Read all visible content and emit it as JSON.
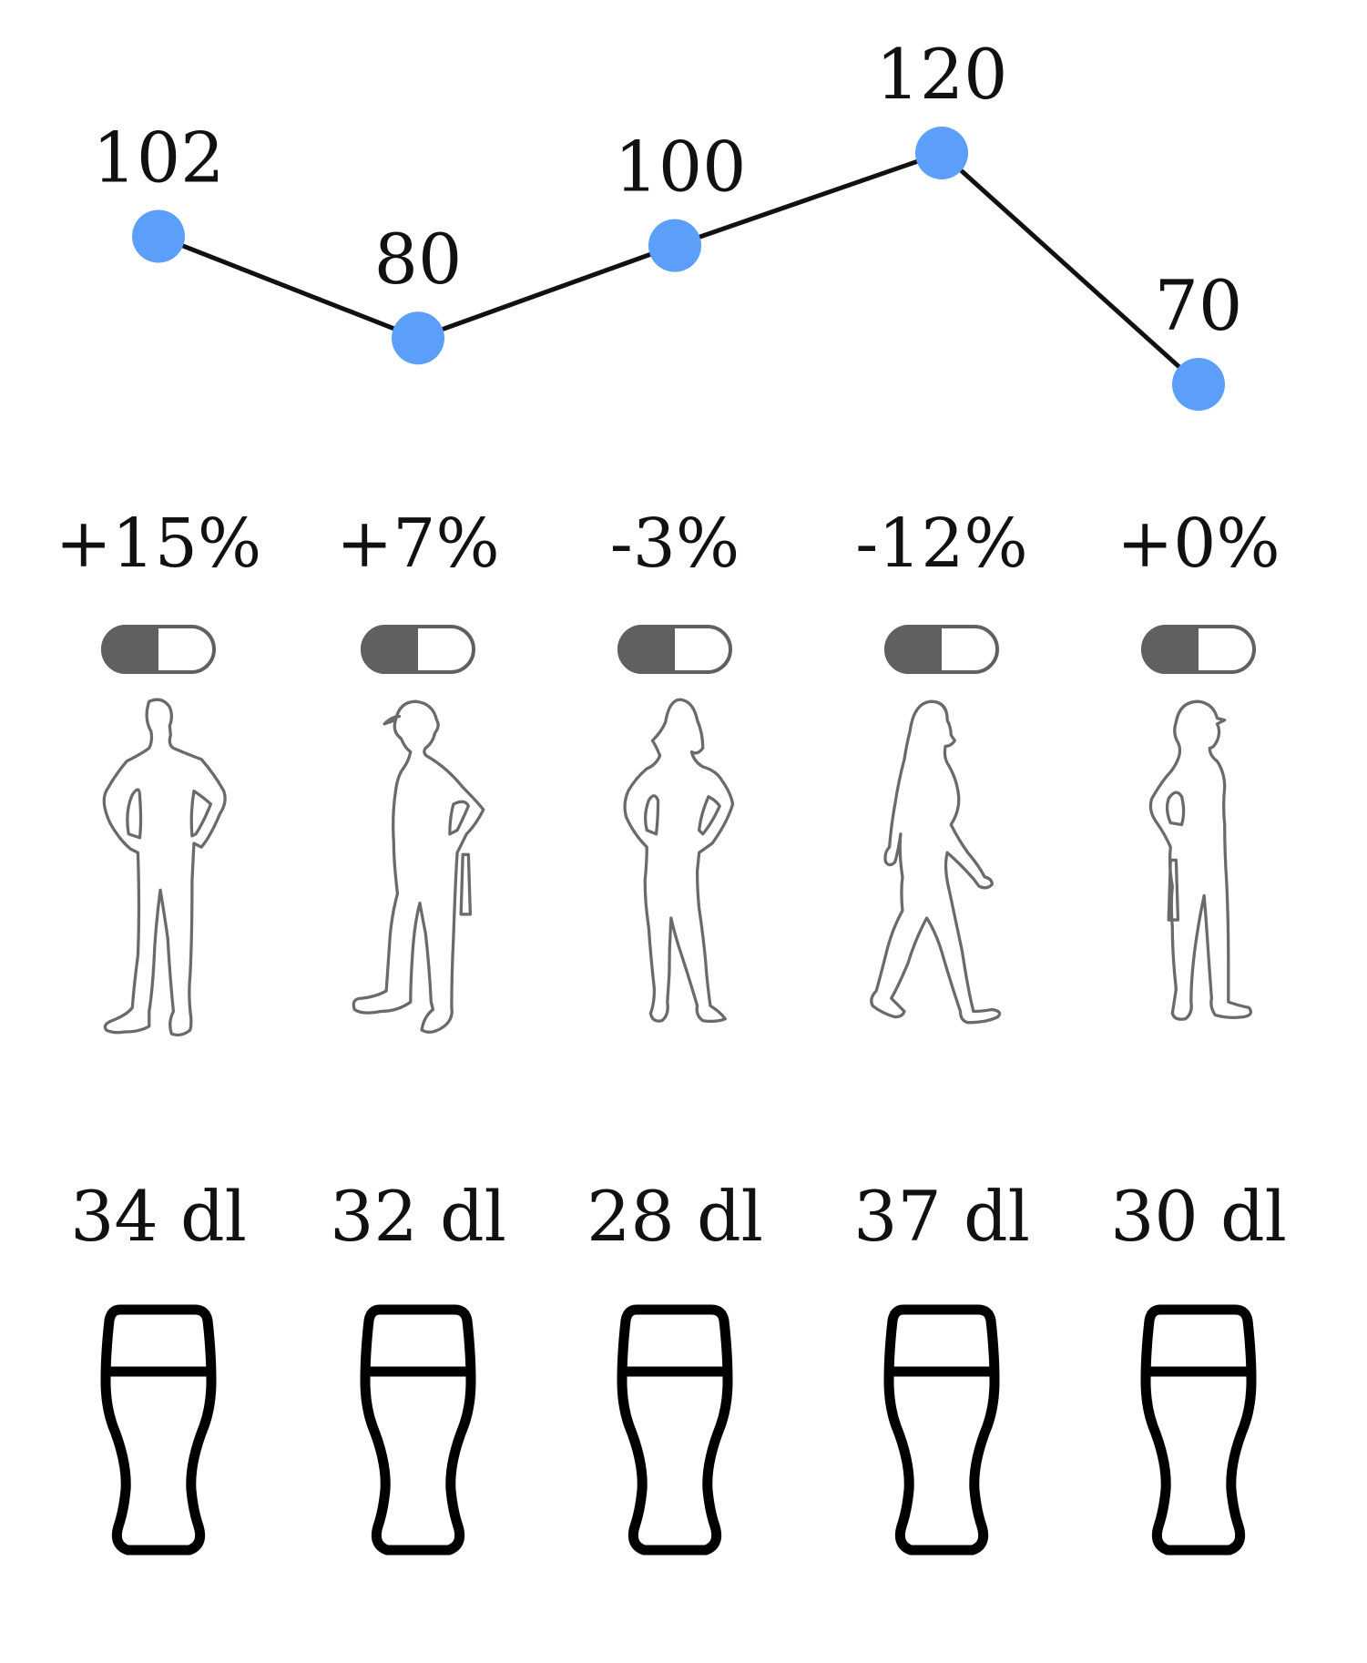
{
  "chart_data": {
    "type": "line",
    "x": [
      1,
      2,
      3,
      4,
      5
    ],
    "values": [
      102,
      80,
      100,
      120,
      70
    ],
    "ylim": [
      70,
      120
    ],
    "point_color": "#5b9ffb",
    "line_color": "#111111"
  },
  "columns": [
    {
      "point_label": "102",
      "change": "+15%",
      "toggle_fill": 0.5,
      "figure": "man-hands-on-hips",
      "volume": "34 dl"
    },
    {
      "point_label": "80",
      "change": "+7%",
      "toggle_fill": 0.5,
      "figure": "worker-with-cap",
      "volume": "32 dl"
    },
    {
      "point_label": "100",
      "change": "-3%",
      "toggle_fill": 0.5,
      "figure": "woman-hands-on-hips",
      "volume": "28 dl"
    },
    {
      "point_label": "120",
      "change": "-12%",
      "toggle_fill": 0.5,
      "figure": "woman-walking",
      "volume": "37 dl"
    },
    {
      "point_label": "70",
      "change": "+0%",
      "toggle_fill": 0.5,
      "figure": "woman-worker-with-cap",
      "volume": "30 dl"
    }
  ],
  "colors": {
    "toggle_on": "#606060",
    "toggle_border": "#606060",
    "figure_stroke": "#6a6a6a",
    "glass_stroke": "#000000"
  },
  "icons": [
    "person-silhouette-icon",
    "pint-glass-icon",
    "toggle-switch"
  ]
}
